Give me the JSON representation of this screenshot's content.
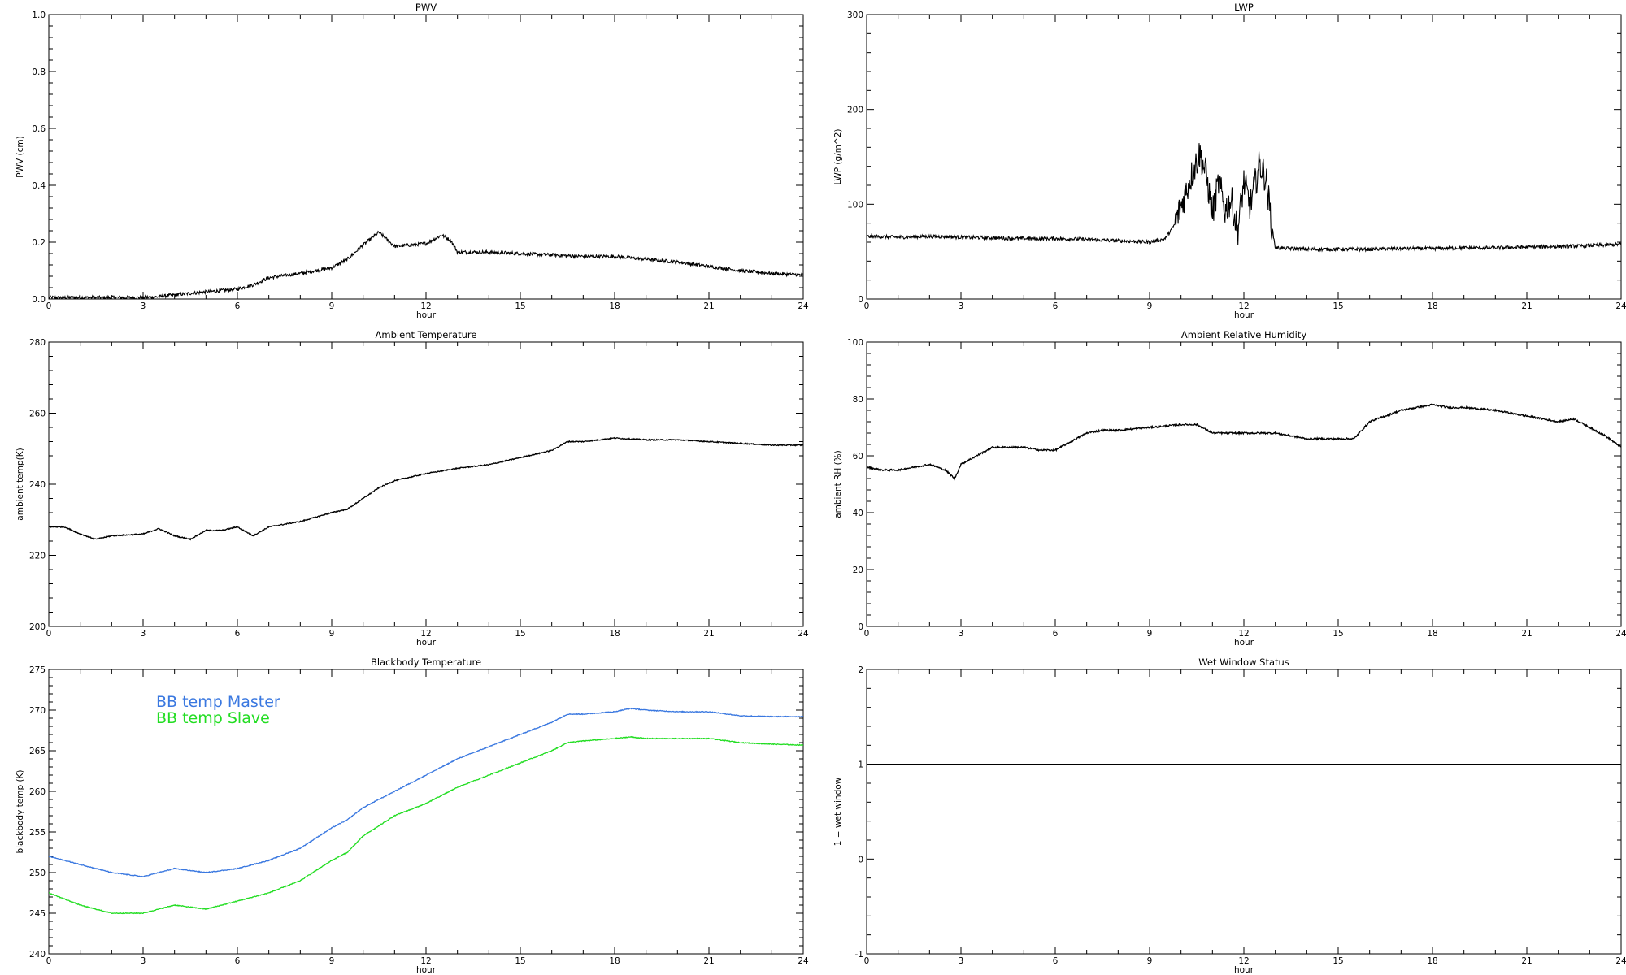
{
  "chart_data": [
    {
      "id": "pwv",
      "type": "line",
      "title": "PWV",
      "xlabel": "hour",
      "ylabel": "PWV (cm)",
      "xlim": [
        0,
        24
      ],
      "ylim": [
        0,
        1.0
      ],
      "xticks": [
        "0",
        "3",
        "6",
        "9",
        "12",
        "15",
        "18",
        "21",
        "24"
      ],
      "yticks": [
        "0.0",
        "0.2",
        "0.4",
        "0.6",
        "0.8",
        "1.0"
      ],
      "grid": false,
      "noise": 0.006,
      "series": [
        {
          "color": "#000000",
          "x": [
            0,
            1,
            2,
            3,
            3.5,
            4,
            5,
            6,
            6.5,
            7,
            8,
            9,
            9.5,
            10,
            10.5,
            11,
            11.5,
            12,
            12.5,
            12.8,
            13,
            14,
            15,
            16,
            17,
            18,
            19,
            20,
            21,
            22,
            23,
            24
          ],
          "y": [
            0.005,
            0.005,
            0.005,
            0.005,
            0.008,
            0.015,
            0.025,
            0.035,
            0.05,
            0.075,
            0.09,
            0.11,
            0.14,
            0.19,
            0.235,
            0.185,
            0.19,
            0.195,
            0.225,
            0.205,
            0.165,
            0.165,
            0.16,
            0.155,
            0.15,
            0.15,
            0.14,
            0.13,
            0.115,
            0.1,
            0.09,
            0.085
          ]
        }
      ]
    },
    {
      "id": "lwp",
      "type": "line",
      "title": "LWP",
      "xlabel": "hour",
      "ylabel": "LWP (g/m^2)",
      "xlim": [
        0,
        24
      ],
      "ylim": [
        -50,
        350
      ],
      "xticks": [
        "0",
        "3",
        "6",
        "9",
        "12",
        "15",
        "18",
        "21",
        "24"
      ],
      "yticks": [
        "0",
        "100",
        "200",
        "300"
      ],
      "grid": false,
      "noise": 2.5,
      "series": [
        {
          "color": "#000000",
          "x": [
            0,
            1,
            2,
            3,
            4,
            5,
            6,
            7,
            8,
            9,
            9.5,
            9.8,
            10,
            10.3,
            10.6,
            10.8,
            11,
            11.2,
            11.4,
            11.6,
            11.8,
            12,
            12.2,
            12.5,
            12.7,
            12.9,
            13,
            14,
            15,
            16,
            17,
            18,
            19,
            20,
            21,
            22,
            23,
            24
          ],
          "y": [
            38,
            37,
            38,
            37,
            36,
            35,
            35,
            34,
            32,
            30,
            35,
            55,
            80,
            120,
            155,
            125,
            70,
            115,
            75,
            90,
            45,
            115,
            80,
            140,
            120,
            50,
            22,
            20,
            20,
            20,
            21,
            21,
            22,
            22,
            23,
            24,
            25,
            27
          ]
        }
      ]
    },
    {
      "id": "ambient-temp",
      "type": "line",
      "title": "Ambient Temperature",
      "xlabel": "hour",
      "ylabel": "ambient temp(K)",
      "xlim": [
        0,
        24
      ],
      "ylim": [
        200,
        280
      ],
      "xticks": [
        "0",
        "3",
        "6",
        "9",
        "12",
        "15",
        "18",
        "21",
        "24"
      ],
      "yticks": [
        "200",
        "220",
        "240",
        "260",
        "280"
      ],
      "grid": false,
      "noise": 0.15,
      "series": [
        {
          "color": "#000000",
          "x": [
            0,
            0.5,
            1,
            1.5,
            2,
            3,
            3.5,
            4,
            4.5,
            5,
            5.5,
            6,
            6.5,
            7,
            8,
            9,
            9.5,
            10,
            10.5,
            11,
            12,
            13,
            14,
            15,
            16,
            16.5,
            17,
            18,
            19,
            20,
            21,
            22,
            23,
            24
          ],
          "y": [
            228,
            228,
            226,
            224.5,
            225.5,
            226,
            227.5,
            225.5,
            224.5,
            227,
            227,
            228,
            225.5,
            228,
            229.5,
            232,
            233,
            236,
            239,
            241,
            243,
            244.5,
            245.5,
            247.5,
            249.5,
            252,
            252,
            253,
            252.5,
            252.5,
            252,
            251.5,
            251,
            251
          ]
        }
      ]
    },
    {
      "id": "ambient-rh",
      "type": "line",
      "title": "Ambient Relative Humidity",
      "xlabel": "hour",
      "ylabel": "ambient RH (%)",
      "xlim": [
        0,
        24
      ],
      "ylim": [
        0,
        100
      ],
      "xticks": [
        "0",
        "3",
        "6",
        "9",
        "12",
        "15",
        "18",
        "21",
        "24"
      ],
      "yticks": [
        "0",
        "20",
        "40",
        "60",
        "80",
        "100"
      ],
      "grid": false,
      "noise": 0.3,
      "series": [
        {
          "color": "#000000",
          "x": [
            0,
            0.5,
            1,
            1.5,
            2,
            2.5,
            2.8,
            3,
            3.5,
            4,
            4.5,
            5,
            5.5,
            6,
            6.5,
            7,
            7.5,
            8,
            9,
            10,
            10.5,
            11,
            12,
            13,
            14,
            15,
            15.5,
            16,
            17,
            17.5,
            18,
            18.5,
            19,
            20,
            21,
            22,
            22.5,
            23,
            23.5,
            24
          ],
          "y": [
            56,
            55,
            55,
            56,
            57,
            55,
            52,
            57,
            60,
            63,
            63,
            63,
            62,
            62,
            65,
            68,
            69,
            69,
            70,
            71,
            71,
            68,
            68,
            68,
            66,
            66,
            66,
            72,
            76,
            77,
            78,
            77,
            77,
            76,
            74,
            72,
            73,
            70,
            67,
            63
          ]
        }
      ]
    },
    {
      "id": "bb-temp",
      "type": "line",
      "title": "Blackbody Temperature",
      "xlabel": "hour",
      "ylabel": "blackbody temp (K)",
      "xlim": [
        0,
        24
      ],
      "ylim": [
        240,
        275
      ],
      "xticks": [
        "0",
        "3",
        "6",
        "9",
        "12",
        "15",
        "18",
        "21",
        "24"
      ],
      "yticks": [
        "240",
        "245",
        "250",
        "255",
        "260",
        "265",
        "270",
        "275"
      ],
      "grid": false,
      "noise": 0.05,
      "legend": "top-left",
      "series": [
        {
          "name": "BB temp Master",
          "color": "#3a78e0",
          "x": [
            0,
            1,
            2,
            3,
            3.5,
            4,
            5,
            6,
            7,
            8,
            9,
            9.5,
            10,
            11,
            12,
            13,
            14,
            15,
            16,
            16.5,
            17,
            18,
            18.5,
            19,
            20,
            21,
            22,
            23,
            24
          ],
          "y": [
            252,
            251,
            250,
            249.5,
            250,
            250.5,
            250,
            250.5,
            251.5,
            253,
            255.5,
            256.5,
            258,
            260,
            262,
            264,
            265.5,
            267,
            268.5,
            269.5,
            269.5,
            269.8,
            270.2,
            270,
            269.8,
            269.8,
            269.3,
            269.2,
            269.2
          ]
        },
        {
          "name": "BB temp Slave",
          "color": "#22dd22",
          "x": [
            0,
            1,
            2,
            3,
            3.5,
            4,
            5,
            6,
            7,
            8,
            9,
            9.5,
            10,
            11,
            12,
            13,
            14,
            15,
            16,
            16.5,
            17,
            18,
            18.5,
            19,
            20,
            21,
            22,
            23,
            24
          ],
          "y": [
            247.5,
            246,
            245,
            245,
            245.5,
            246,
            245.5,
            246.5,
            247.5,
            249,
            251.5,
            252.5,
            254.5,
            257,
            258.5,
            260.5,
            262,
            263.5,
            265,
            266,
            266.2,
            266.5,
            266.7,
            266.5,
            266.5,
            266.5,
            266,
            265.8,
            265.7
          ]
        }
      ]
    },
    {
      "id": "wet-window",
      "type": "line",
      "title": "Wet Window Status",
      "xlabel": "hour",
      "ylabel": "1 = wet window",
      "xlim": [
        0,
        24
      ],
      "ylim": [
        -1,
        2
      ],
      "xticks": [
        "0",
        "3",
        "6",
        "9",
        "12",
        "15",
        "18",
        "21",
        "24"
      ],
      "yticks": [
        "-1",
        "0",
        "1",
        "2"
      ],
      "grid": false,
      "noise": 0,
      "series": [
        {
          "color": "#000000",
          "x": [
            0,
            24
          ],
          "y": [
            1,
            1
          ]
        }
      ]
    }
  ]
}
